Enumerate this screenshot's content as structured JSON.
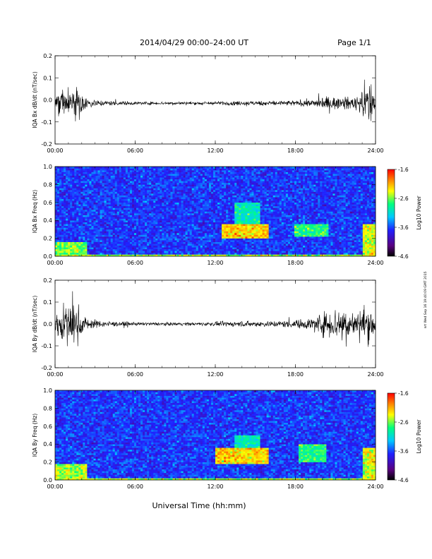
{
  "header": {
    "title": "2014/04/29  00:00–24:00 UT",
    "page": "Page 1/1"
  },
  "side_stamp": "nrt Wed Sep 16 19:40:09 GMT 2015",
  "xlabel": "Universal Time (hh:mm)",
  "colors": {
    "trace": "#000000",
    "background": "#ffffff",
    "spectrogram_base": "#2a7ad8",
    "colorbar": [
      "#000000",
      "#5a0080",
      "#2020ff",
      "#00c8ff",
      "#00ff80",
      "#ffff00",
      "#ff8000",
      "#ff0000"
    ]
  },
  "chart_data": [
    {
      "type": "line",
      "name": "bx-waveform",
      "ylabel": "IQA Bx dB/dt (nT/sec)",
      "ylim": [
        -0.2,
        0.2
      ],
      "yticks": [
        "-0.2",
        "-0.1",
        "0.0",
        "0.1",
        "0.2"
      ],
      "xticks": [
        "00:00",
        "06:00",
        "12:00",
        "18:00",
        "24:00"
      ],
      "x_hours": [
        0,
        0.3,
        0.6,
        0.9,
        1.2,
        1.5,
        1.8,
        2.1,
        2.5,
        3,
        4,
        5,
        6,
        7,
        8,
        9,
        10,
        11,
        12,
        13,
        14,
        15,
        16,
        17,
        18,
        19,
        19.5,
        20,
        20.5,
        21,
        21.5,
        22,
        22.5,
        23,
        23.3,
        23.6,
        23.8,
        24
      ],
      "envelope": [
        0.06,
        0.1,
        0.14,
        0.08,
        0.11,
        0.13,
        0.09,
        0.05,
        0.035,
        0.025,
        0.018,
        0.015,
        0.012,
        0.012,
        0.011,
        0.011,
        0.011,
        0.012,
        0.013,
        0.015,
        0.016,
        0.017,
        0.018,
        0.018,
        0.02,
        0.025,
        0.03,
        0.04,
        0.05,
        0.045,
        0.05,
        0.04,
        0.05,
        0.09,
        0.15,
        0.18,
        0.11,
        0.04
      ],
      "offset": -0.015
    },
    {
      "type": "heatmap",
      "name": "bx-spectrogram",
      "ylabel": "IQA Bx Freq (Hz)",
      "ylim": [
        0,
        1
      ],
      "yticks": [
        "0.0",
        "0.2",
        "0.4",
        "0.6",
        "0.8",
        "1.0"
      ],
      "xticks": [
        "00:00",
        "06:00",
        "12:00",
        "18:00",
        "24:00"
      ],
      "colorbar_label": "Log10 Power",
      "colorbar_ticks": [
        "-1.6",
        "-2.6",
        "-3.6",
        "-4.6"
      ],
      "clim": [
        -4.6,
        -1.6
      ],
      "features": [
        {
          "t": [
            0,
            2.4
          ],
          "f": [
            0,
            0.15
          ],
          "level": -2.6
        },
        {
          "t": [
            12.5,
            16
          ],
          "f": [
            0.2,
            0.35
          ],
          "level": -2.2
        },
        {
          "t": [
            13.5,
            15.3
          ],
          "f": [
            0.3,
            0.6
          ],
          "level": -3.0
        },
        {
          "t": [
            18,
            20.5
          ],
          "f": [
            0.22,
            0.36
          ],
          "level": -2.8
        },
        {
          "t": [
            23,
            24
          ],
          "f": [
            0,
            0.35
          ],
          "level": -2.4
        }
      ]
    },
    {
      "type": "line",
      "name": "by-waveform",
      "ylabel": "IQA By dB/dt (nT/sec)",
      "ylim": [
        -0.2,
        0.2
      ],
      "yticks": [
        "-0.2",
        "-0.1",
        "0.0",
        "0.1",
        "0.2"
      ],
      "xticks": [
        "00:00",
        "06:00",
        "12:00",
        "18:00",
        "24:00"
      ],
      "x_hours": [
        0,
        0.3,
        0.6,
        0.9,
        1.2,
        1.5,
        1.8,
        2.1,
        2.5,
        3,
        4,
        5,
        6,
        7,
        8,
        9,
        10,
        11,
        12,
        13,
        14,
        15,
        16,
        17,
        18,
        19,
        19.5,
        20,
        20.5,
        21,
        21.5,
        22,
        22.5,
        23,
        23.3,
        23.6,
        23.8,
        24
      ],
      "envelope": [
        0.08,
        0.12,
        0.15,
        0.12,
        0.14,
        0.17,
        0.12,
        0.06,
        0.04,
        0.03,
        0.02,
        0.016,
        0.012,
        0.012,
        0.011,
        0.011,
        0.012,
        0.013,
        0.015,
        0.018,
        0.02,
        0.02,
        0.022,
        0.025,
        0.03,
        0.04,
        0.06,
        0.08,
        0.1,
        0.12,
        0.14,
        0.1,
        0.08,
        0.12,
        0.14,
        0.13,
        0.1,
        0.05
      ],
      "offset": 0.0
    },
    {
      "type": "heatmap",
      "name": "by-spectrogram",
      "ylabel": "IQA By Freq (Hz)",
      "ylim": [
        0,
        1
      ],
      "yticks": [
        "0.0",
        "0.2",
        "0.4",
        "0.6",
        "0.8",
        "1.0"
      ],
      "xticks": [
        "00:00",
        "06:00",
        "12:00",
        "18:00",
        "24:00"
      ],
      "colorbar_label": "Log10 Power",
      "colorbar_ticks": [
        "-1.6",
        "-2.6",
        "-3.6",
        "-4.6"
      ],
      "clim": [
        -4.6,
        -1.6
      ],
      "features": [
        {
          "t": [
            0,
            2.4
          ],
          "f": [
            0,
            0.18
          ],
          "level": -2.5
        },
        {
          "t": [
            12,
            16
          ],
          "f": [
            0.18,
            0.36
          ],
          "level": -2.2
        },
        {
          "t": [
            13.5,
            15.3
          ],
          "f": [
            0.3,
            0.5
          ],
          "level": -3.0
        },
        {
          "t": [
            18.3,
            20.3
          ],
          "f": [
            0.2,
            0.4
          ],
          "level": -2.8
        },
        {
          "t": [
            23,
            24
          ],
          "f": [
            0,
            0.35
          ],
          "level": -2.4
        }
      ]
    }
  ]
}
